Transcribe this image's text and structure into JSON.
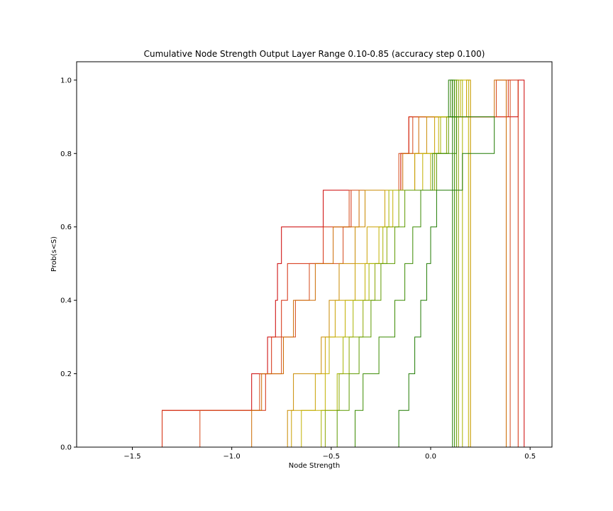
{
  "chart_data": {
    "type": "line",
    "subtype": "step-cdf",
    "title": "Cumulative Node Strength Output Layer Range 0.10-0.85 (accuracy step 0.100)",
    "xlabel": "Node Strength",
    "ylabel": "Prob(s<S)",
    "xlim": [
      -1.78,
      0.61
    ],
    "ylim": [
      0,
      1.05
    ],
    "xticks": [
      -1.5,
      -1.0,
      -0.5,
      0.0,
      0.5
    ],
    "xtick_labels": [
      "−1.5",
      "−1.0",
      "−0.5",
      "0.0",
      "0.5"
    ],
    "yticks": [
      0.0,
      0.2,
      0.4,
      0.6,
      0.8,
      1.0
    ],
    "ytick_labels": [
      "0.0",
      "0.2",
      "0.4",
      "0.6",
      "0.8",
      "1.0"
    ],
    "grid": false,
    "legend": "none",
    "series": [
      {
        "color": "#cc0000",
        "x": [
          -1.69,
          -1.35,
          -0.9,
          -0.82,
          -0.78,
          -0.77,
          -0.75,
          -0.54,
          -0.15,
          -0.11,
          0.44,
          0.47
        ]
      },
      {
        "color": "#d42a0a",
        "x": [
          -1.63,
          -1.35,
          -0.83,
          -0.8,
          -0.75,
          -0.72,
          -0.54,
          -0.4,
          -0.15,
          -0.11,
          0.39,
          0.44
        ]
      },
      {
        "color": "#d4491a",
        "x": [
          -1.34,
          -1.16,
          -0.86,
          -0.75,
          -0.68,
          -0.61,
          -0.44,
          -0.41,
          -0.16,
          -0.09,
          0.33,
          0.4
        ]
      },
      {
        "color": "#cc6a00",
        "x": [
          -1.27,
          -0.9,
          -0.85,
          -0.74,
          -0.69,
          -0.58,
          -0.49,
          -0.36,
          -0.14,
          -0.06,
          0.32,
          0.38
        ]
      },
      {
        "color": "#c98a00",
        "x": [
          -0.97,
          -0.72,
          -0.69,
          -0.55,
          -0.51,
          -0.46,
          -0.38,
          -0.33,
          -0.08,
          -0.02,
          0.18,
          0.2
        ]
      },
      {
        "color": "#c9a000",
        "x": [
          -0.9,
          -0.7,
          -0.58,
          -0.53,
          -0.48,
          -0.38,
          -0.32,
          -0.23,
          -0.08,
          0.02,
          0.18,
          0.2
        ]
      },
      {
        "color": "#c2b000",
        "x": [
          -0.71,
          -0.65,
          -0.53,
          -0.51,
          -0.43,
          -0.33,
          -0.26,
          -0.19,
          -0.04,
          0.04,
          0.15,
          0.19
        ]
      },
      {
        "color": "#a8b300",
        "x": [
          -0.64,
          -0.55,
          -0.47,
          -0.44,
          -0.39,
          -0.31,
          -0.24,
          -0.21,
          0.0,
          0.05,
          0.13,
          0.16
        ]
      },
      {
        "color": "#8aa600",
        "x": [
          -0.62,
          -0.53,
          -0.46,
          -0.41,
          -0.34,
          -0.28,
          -0.22,
          -0.16,
          0.02,
          0.08,
          0.12,
          0.14
        ]
      },
      {
        "color": "#5e9a00",
        "x": [
          -0.6,
          -0.47,
          -0.41,
          -0.36,
          -0.3,
          -0.25,
          -0.18,
          -0.13,
          0.03,
          0.09,
          0.11,
          0.13
        ]
      },
      {
        "color": "#3a8a00",
        "x": [
          -0.42,
          -0.38,
          -0.34,
          -0.26,
          -0.18,
          -0.13,
          -0.09,
          -0.05,
          0.01,
          0.13,
          0.1,
          0.12
        ]
      },
      {
        "color": "#1f7a00",
        "x": [
          -0.17,
          -0.16,
          -0.11,
          -0.08,
          -0.05,
          -0.02,
          0.0,
          0.03,
          0.16,
          0.32,
          0.09,
          0.11
        ]
      }
    ]
  }
}
